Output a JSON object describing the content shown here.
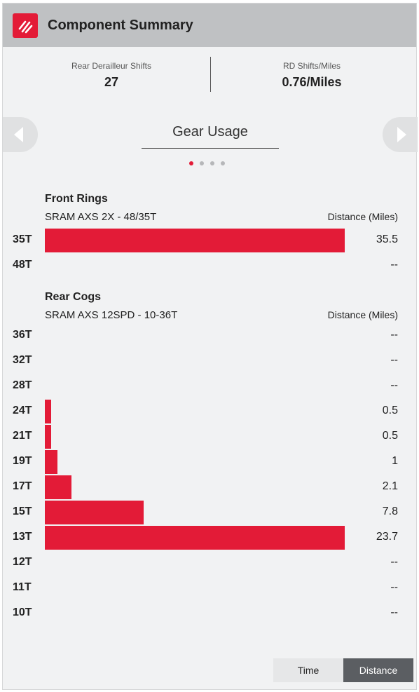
{
  "header": {
    "title": "Component Summary",
    "logo_icon": "sram-logo-icon"
  },
  "stats": [
    {
      "label": "Rear Derailleur Shifts",
      "value": "27"
    },
    {
      "label": "RD Shifts/Miles",
      "value": "0.76/Miles"
    }
  ],
  "carousel": {
    "title": "Gear Usage",
    "prev_icon": "chevron-left-icon",
    "next_icon": "chevron-right-icon",
    "page_count": 4,
    "active_page": 1
  },
  "front": {
    "title": "Front Rings",
    "subtitle": "SRAM AXS 2X - 48/35T",
    "unit": "Distance (Miles)",
    "rows": [
      {
        "label": "35T",
        "value": "35.5",
        "amount": 35.5
      },
      {
        "label": "48T",
        "value": "--",
        "amount": 0
      }
    ]
  },
  "rear": {
    "title": "Rear Cogs",
    "subtitle": "SRAM AXS 12SPD - 10-36T",
    "unit": "Distance (Miles)",
    "rows": [
      {
        "label": "36T",
        "value": "--",
        "amount": 0
      },
      {
        "label": "32T",
        "value": "--",
        "amount": 0
      },
      {
        "label": "28T",
        "value": "--",
        "amount": 0
      },
      {
        "label": "24T",
        "value": "0.5",
        "amount": 0.5
      },
      {
        "label": "21T",
        "value": "0.5",
        "amount": 0.5
      },
      {
        "label": "19T",
        "value": "1",
        "amount": 1
      },
      {
        "label": "17T",
        "value": "2.1",
        "amount": 2.1
      },
      {
        "label": "15T",
        "value": "7.8",
        "amount": 7.8
      },
      {
        "label": "13T",
        "value": "23.7",
        "amount": 23.7
      },
      {
        "label": "12T",
        "value": "--",
        "amount": 0
      },
      {
        "label": "11T",
        "value": "--",
        "amount": 0
      },
      {
        "label": "10T",
        "value": "--",
        "amount": 0
      }
    ]
  },
  "toggle": {
    "time_label": "Time",
    "distance_label": "Distance",
    "selected": "Distance"
  },
  "colors": {
    "bar": "#e31b37",
    "header_bg": "#bfc1c3",
    "active_dot": "#e31b37",
    "inactive_dot": "#b6b7b9"
  }
}
